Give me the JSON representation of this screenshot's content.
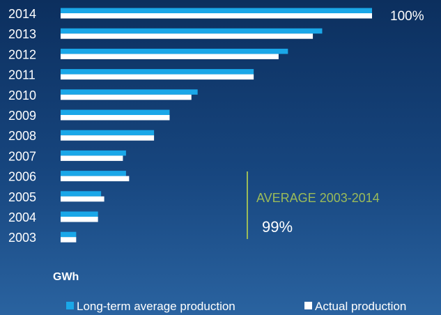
{
  "chart_data": {
    "type": "bar",
    "orientation": "horizontal",
    "categories": [
      "2014",
      "2013",
      "2012",
      "2011",
      "2010",
      "2009",
      "2008",
      "2007",
      "2006",
      "2005",
      "2004",
      "2003"
    ],
    "series": [
      {
        "name": "Long-term average production",
        "color": "#1aa7e8",
        "values": [
          100,
          84,
          73,
          62,
          44,
          35,
          30,
          21,
          21,
          13,
          12,
          5
        ]
      },
      {
        "name": "Actual production",
        "color": "#ffffff",
        "values": [
          100,
          81,
          70,
          62,
          42,
          35,
          30,
          20,
          22,
          14,
          12,
          5
        ]
      }
    ],
    "xlim": [
      0,
      100
    ],
    "top_label": "100%",
    "annotation": {
      "label": "AVERAGE 2003-2014",
      "value": "99%",
      "color": "#9bbb59"
    },
    "unit_label": "GWh",
    "legend_position": "bottom-right",
    "grid": false
  }
}
